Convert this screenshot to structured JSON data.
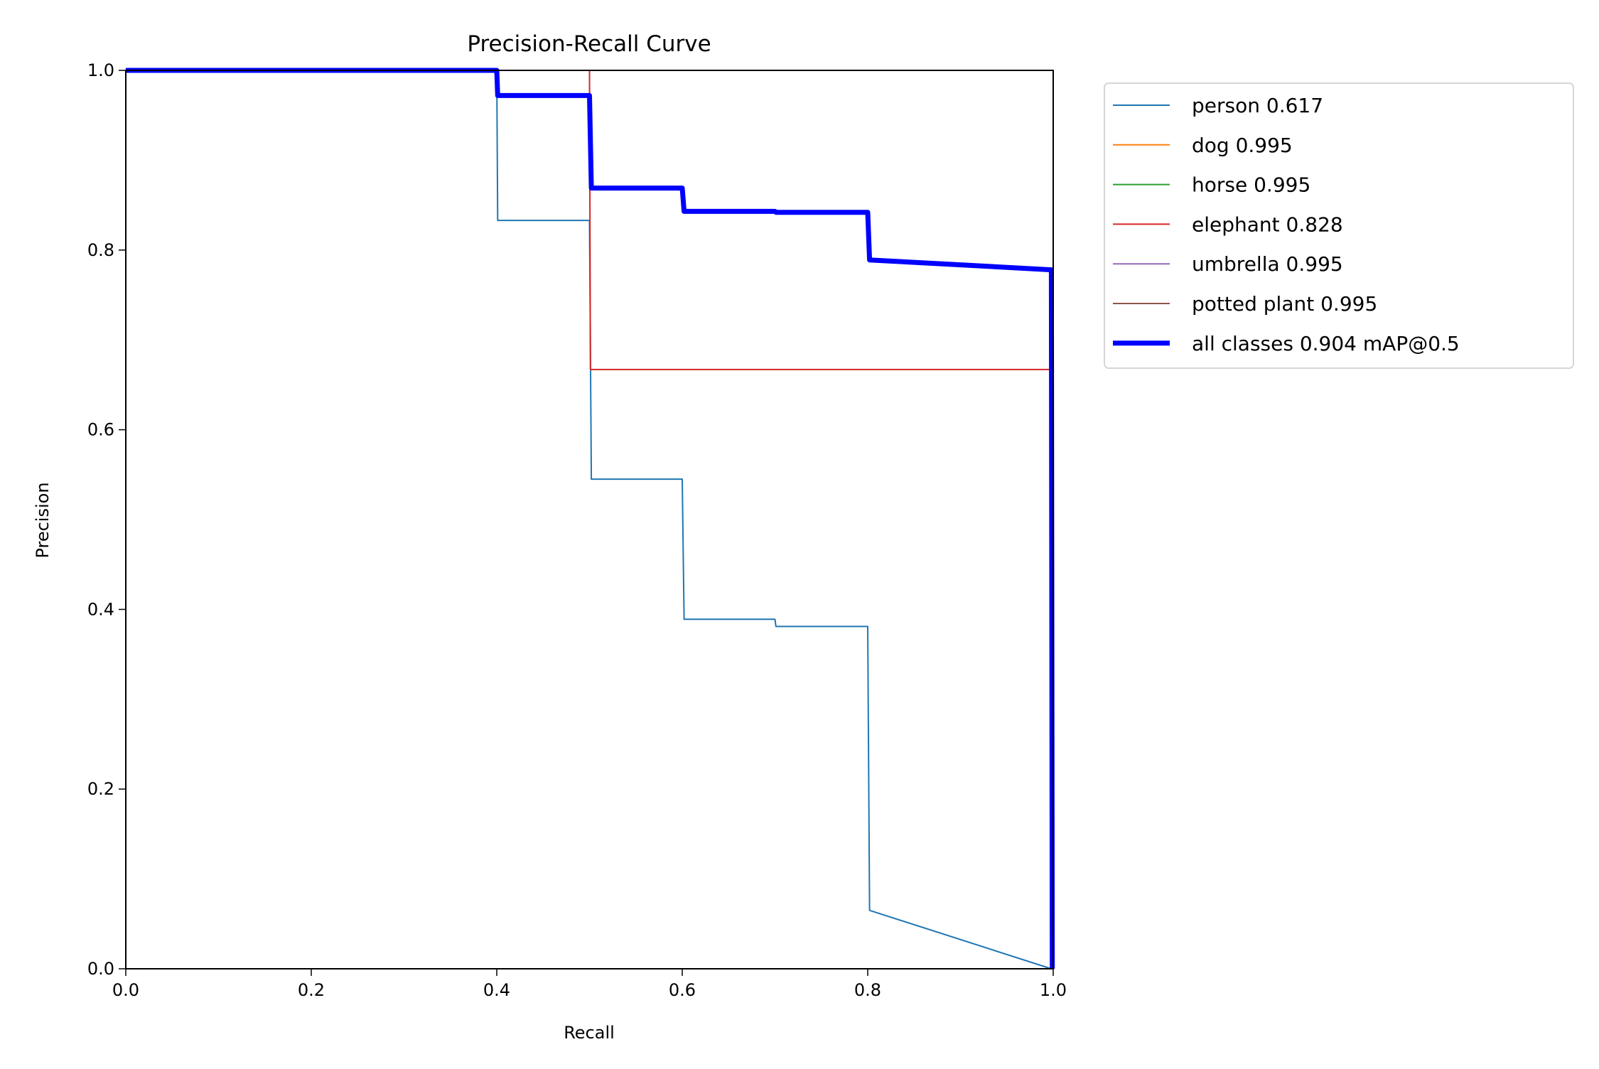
{
  "chart_data": {
    "type": "line",
    "title": "Precision-Recall Curve",
    "xlabel": "Recall",
    "ylabel": "Precision",
    "xlim": [
      0,
      1
    ],
    "ylim": [
      0,
      1
    ],
    "xticks": [
      "0.0",
      "0.2",
      "0.4",
      "0.6",
      "0.8",
      "1.0"
    ],
    "yticks": [
      "0.0",
      "0.2",
      "0.4",
      "0.6",
      "0.8",
      "1.0"
    ],
    "grid": false,
    "legend_position": "outside-top-right",
    "series": [
      {
        "name": "person 0.617",
        "color": "#1f77b4",
        "width": "thin",
        "points": [
          [
            0,
            1
          ],
          [
            0.4,
            1
          ],
          [
            0.401,
            0.833
          ],
          [
            0.5,
            0.833
          ],
          [
            0.502,
            0.545
          ],
          [
            0.6,
            0.545
          ],
          [
            0.602,
            0.389
          ],
          [
            0.7,
            0.389
          ],
          [
            0.701,
            0.381
          ],
          [
            0.8,
            0.381
          ],
          [
            0.802,
            0.065
          ],
          [
            0.998,
            0
          ],
          [
            1.0,
            0
          ]
        ]
      },
      {
        "name": "dog 0.995",
        "color": "#ff7f0e",
        "width": "thin",
        "points": [
          [
            0,
            1
          ],
          [
            1.0,
            1
          ],
          [
            1.0,
            0
          ]
        ]
      },
      {
        "name": "horse 0.995",
        "color": "#2ca02c",
        "width": "thin",
        "points": [
          [
            0,
            1
          ],
          [
            1.0,
            1
          ],
          [
            1.0,
            0
          ]
        ]
      },
      {
        "name": "elephant 0.828",
        "color": "#d62728",
        "width": "thin",
        "points": [
          [
            0,
            1
          ],
          [
            0.5,
            1
          ],
          [
            0.501,
            0.667
          ],
          [
            0.998,
            0.667
          ],
          [
            0.999,
            0
          ]
        ]
      },
      {
        "name": "umbrella 0.995",
        "color": "#9467bd",
        "width": "thin",
        "points": [
          [
            0,
            1
          ],
          [
            1.0,
            1
          ],
          [
            1.0,
            0
          ]
        ]
      },
      {
        "name": "potted plant 0.995",
        "color": "#8c564b",
        "width": "thin",
        "points": [
          [
            0,
            1
          ],
          [
            1.0,
            1
          ],
          [
            1.0,
            0
          ]
        ]
      },
      {
        "name": "all classes 0.904 mAP@0.5",
        "color": "#0000ff",
        "width": "thick",
        "points": [
          [
            0,
            1
          ],
          [
            0.4,
            1
          ],
          [
            0.401,
            0.972
          ],
          [
            0.5,
            0.972
          ],
          [
            0.502,
            0.869
          ],
          [
            0.6,
            0.869
          ],
          [
            0.602,
            0.843
          ],
          [
            0.7,
            0.843
          ],
          [
            0.701,
            0.842
          ],
          [
            0.8,
            0.842
          ],
          [
            0.802,
            0.789
          ],
          [
            0.998,
            0.778
          ],
          [
            0.999,
            0
          ]
        ]
      }
    ]
  }
}
